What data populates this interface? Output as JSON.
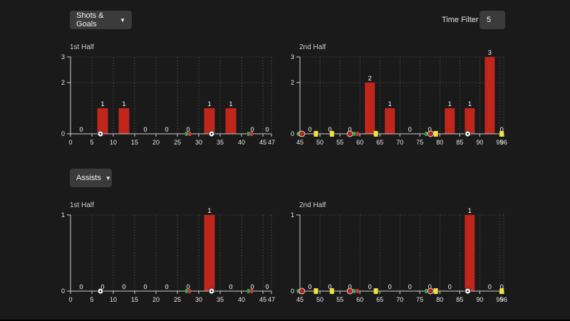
{
  "controls": {
    "shots_dropdown_label": "Shots & Goals",
    "time_filter_label": "Time Filter",
    "time_filter_value": "5",
    "assists_dropdown_label": "Assists"
  },
  "colors": {
    "background": "#1a1a1a",
    "bar": "#c0261c",
    "grid": "#555555",
    "axis": "#cfcfcf",
    "card": "#f0e040"
  },
  "chart_data": [
    {
      "id": "shots-1st-half",
      "type": "bar",
      "title": "1st Half",
      "x_ticks": [
        "0",
        "5",
        "10",
        "15",
        "20",
        "25",
        "30",
        "35",
        "40",
        "45",
        "47"
      ],
      "y_ticks": [
        "0",
        "2",
        "3"
      ],
      "ylim": [
        0,
        3
      ],
      "x": [
        2.5,
        7.5,
        12.5,
        17.5,
        22.5,
        27.5,
        32.5,
        37.5,
        42.5,
        46
      ],
      "values": [
        0,
        1,
        1,
        0,
        0,
        0,
        1,
        1,
        0,
        0
      ],
      "labels": [
        "0",
        "1",
        "1",
        "0",
        "0",
        "0",
        "1",
        "1",
        "0",
        "0"
      ],
      "events": [
        {
          "minute": 7,
          "icon": "ball-icon"
        },
        {
          "minute": 27.5,
          "icon": "substitution-icon"
        },
        {
          "minute": 33,
          "icon": "ball-icon"
        },
        {
          "minute": 42,
          "icon": "substitution-icon"
        }
      ]
    },
    {
      "id": "shots-2nd-half",
      "type": "bar",
      "title": "2nd Half",
      "x_ticks": [
        "45",
        "50",
        "55",
        "60",
        "65",
        "70",
        "75",
        "80",
        "85",
        "90",
        "95",
        "96"
      ],
      "y_ticks": [
        "0",
        "2",
        "3"
      ],
      "ylim": [
        0,
        3
      ],
      "x": [
        47.5,
        52.5,
        57.5,
        62.5,
        67.5,
        72.5,
        77.5,
        82.5,
        87.5,
        92.5,
        95.5
      ],
      "values": [
        0,
        0,
        0,
        2,
        1,
        0,
        0,
        1,
        1,
        3,
        0
      ],
      "labels": [
        "0",
        "0",
        "0",
        "2",
        "1",
        "0",
        "0",
        "1",
        "1",
        "3",
        "0"
      ],
      "events": [
        {
          "minute": 45,
          "icon": "substitution-icon"
        },
        {
          "minute": 45.5,
          "icon": "red-ball-icon"
        },
        {
          "minute": 49,
          "icon": "yellow-card-icon"
        },
        {
          "minute": 53,
          "icon": "yellow-card-icon"
        },
        {
          "minute": 57.5,
          "icon": "red-ball-icon"
        },
        {
          "minute": 59,
          "icon": "substitution-icon"
        },
        {
          "minute": 64,
          "icon": "yellow-card-icon"
        },
        {
          "minute": 77,
          "icon": "substitution-icon"
        },
        {
          "minute": 77.7,
          "icon": "red-ball-icon"
        },
        {
          "minute": 79,
          "icon": "yellow-card-icon"
        },
        {
          "minute": 87,
          "icon": "ball-icon"
        },
        {
          "minute": 95.5,
          "icon": "yellow-card-icon"
        }
      ]
    },
    {
      "id": "assists-1st-half",
      "type": "bar",
      "title": "1st Half",
      "x_ticks": [
        "0",
        "5",
        "10",
        "15",
        "20",
        "25",
        "30",
        "35",
        "40",
        "45",
        "47"
      ],
      "y_ticks": [
        "0",
        "1"
      ],
      "ylim": [
        0,
        1
      ],
      "x": [
        2.5,
        7.5,
        12.5,
        17.5,
        22.5,
        27.5,
        32.5,
        37.5,
        42.5,
        46
      ],
      "values": [
        0,
        0,
        0,
        0,
        0,
        0,
        1,
        0,
        0,
        0
      ],
      "labels": [
        "0",
        "0",
        "0",
        "0",
        "0",
        "0",
        "1",
        "0",
        "0",
        "0"
      ],
      "events": [
        {
          "minute": 7,
          "icon": "ball-icon"
        },
        {
          "minute": 27.5,
          "icon": "substitution-icon"
        },
        {
          "minute": 33,
          "icon": "ball-icon"
        },
        {
          "minute": 42,
          "icon": "substitution-icon"
        }
      ]
    },
    {
      "id": "assists-2nd-half",
      "type": "bar",
      "title": "2nd Half",
      "x_ticks": [
        "45",
        "50",
        "55",
        "60",
        "65",
        "70",
        "75",
        "80",
        "85",
        "90",
        "95",
        "96"
      ],
      "y_ticks": [
        "0",
        "1"
      ],
      "ylim": [
        0,
        1
      ],
      "x": [
        47.5,
        52.5,
        57.5,
        62.5,
        67.5,
        72.5,
        77.5,
        82.5,
        87.5,
        92.5,
        95.5
      ],
      "values": [
        0,
        0,
        0,
        0,
        0,
        0,
        0,
        0,
        1,
        0,
        0
      ],
      "labels": [
        "0",
        "0",
        "0",
        "0",
        "0",
        "0",
        "0",
        "0",
        "1",
        "0",
        "0"
      ],
      "events": [
        {
          "minute": 45,
          "icon": "substitution-icon"
        },
        {
          "minute": 45.5,
          "icon": "red-ball-icon"
        },
        {
          "minute": 49,
          "icon": "yellow-card-icon"
        },
        {
          "minute": 53,
          "icon": "yellow-card-icon"
        },
        {
          "minute": 57.5,
          "icon": "red-ball-icon"
        },
        {
          "minute": 59,
          "icon": "substitution-icon"
        },
        {
          "minute": 64,
          "icon": "yellow-card-icon"
        },
        {
          "minute": 77,
          "icon": "substitution-icon"
        },
        {
          "minute": 77.7,
          "icon": "red-ball-icon"
        },
        {
          "minute": 79,
          "icon": "yellow-card-icon"
        },
        {
          "minute": 87,
          "icon": "ball-icon"
        },
        {
          "minute": 95.5,
          "icon": "yellow-card-icon"
        }
      ]
    }
  ]
}
